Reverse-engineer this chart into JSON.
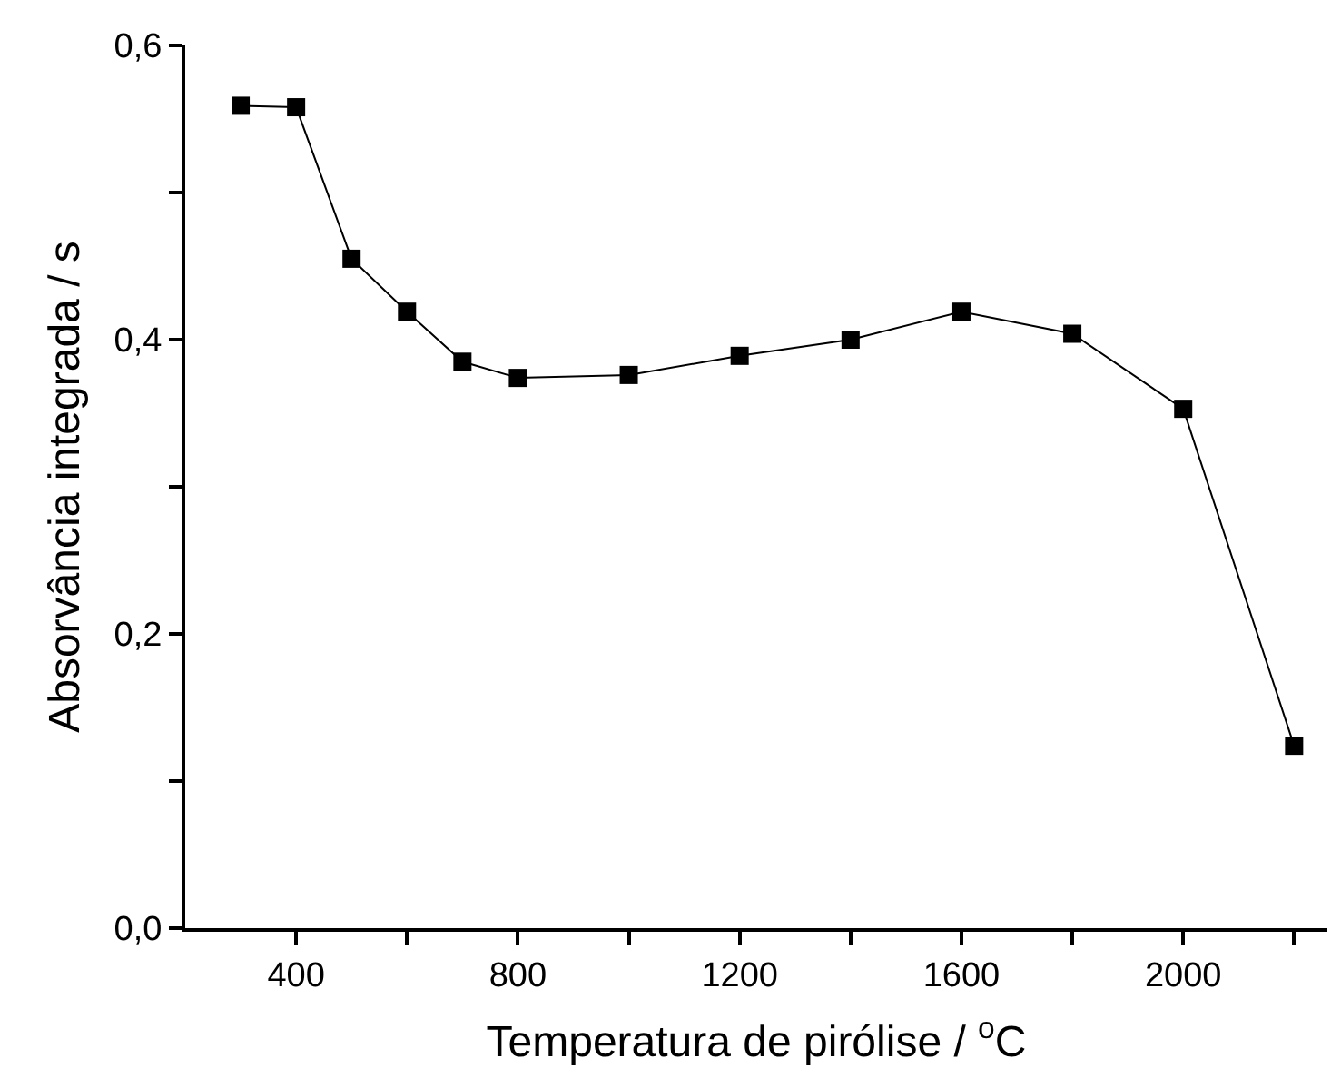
{
  "chart_data": {
    "type": "line",
    "xlabel": "Temperatura de pirólise / $^{o}$C",
    "ylabel": "Absorvância integrada / s",
    "x": [
      300,
      400,
      500,
      600,
      700,
      800,
      1000,
      1200,
      1400,
      1600,
      1800,
      2000,
      2200
    ],
    "series": [
      {
        "color": "#000000",
        "values": [
          0.559,
          0.558,
          0.455,
          0.419,
          0.385,
          0.374,
          0.376,
          0.389,
          0.4,
          0.419,
          0.404,
          0.353,
          0.124
        ]
      }
    ],
    "xlim": [
      200,
      2260
    ],
    "ylim": [
      0,
      0.6
    ],
    "xticks": [
      {
        "value": 400,
        "label": "400"
      },
      {
        "value": 600,
        "label": null
      },
      {
        "value": 800,
        "label": "800"
      },
      {
        "value": 1000,
        "label": null
      },
      {
        "value": 1200,
        "label": "1200"
      },
      {
        "value": 1400,
        "label": null
      },
      {
        "value": 1600,
        "label": "1600"
      },
      {
        "value": 1800,
        "label": null
      },
      {
        "value": 2000,
        "label": "2000"
      },
      {
        "value": 2200,
        "label": null
      }
    ],
    "yticks": [
      {
        "value": 0,
        "label": "0,0"
      },
      {
        "value": 0.1,
        "label": null
      },
      {
        "value": 0.2,
        "label": "0,2"
      },
      {
        "value": 0.3,
        "label": null
      },
      {
        "value": 0.4,
        "label": "0,4"
      },
      {
        "value": 0.5,
        "label": null
      },
      {
        "value": 0.6,
        "label": "0,6"
      }
    ],
    "marker": "square",
    "line_style": "solid",
    "grid": false
  }
}
